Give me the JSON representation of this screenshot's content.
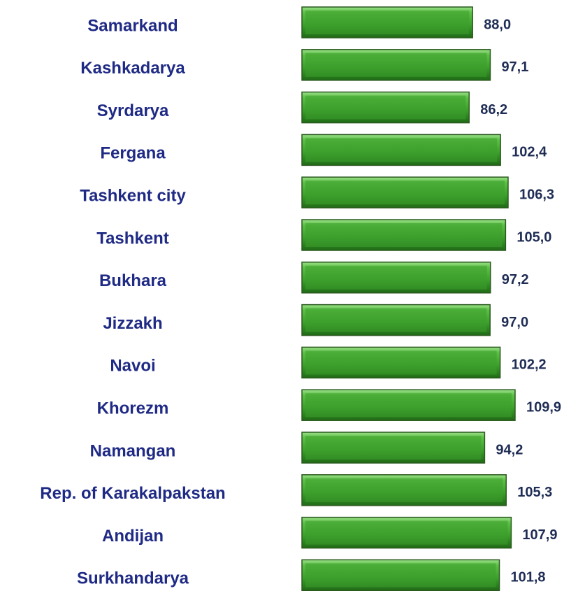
{
  "chart_data": {
    "type": "bar",
    "orientation": "horizontal",
    "categories": [
      "Samarkand",
      "Kashkadarya",
      "Syrdarya",
      "Fergana",
      "Tashkent city",
      "Tashkent",
      "Bukhara",
      "Jizzakh",
      "Navoi",
      "Khorezm",
      "Namangan",
      "Rep. of Karakalpakstan",
      "Andijan",
      "Surkhandarya"
    ],
    "values": [
      88.0,
      97.1,
      86.2,
      102.4,
      106.3,
      105.0,
      97.2,
      97.0,
      102.2,
      109.9,
      94.2,
      105.3,
      107.9,
      101.8
    ],
    "value_labels": [
      "88,0",
      "97,1",
      "86,2",
      "102,4",
      "106,3",
      "105,0",
      "97,2",
      "97,0",
      "102,2",
      "109,9",
      "94,2",
      "105,3",
      "107,9",
      "101,8"
    ],
    "color": "#3c9e2c",
    "xlim": [
      0,
      120
    ]
  }
}
